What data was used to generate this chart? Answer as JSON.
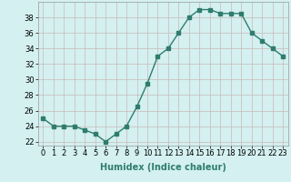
{
  "x": [
    0,
    1,
    2,
    3,
    4,
    5,
    6,
    7,
    8,
    9,
    10,
    11,
    12,
    13,
    14,
    15,
    16,
    17,
    18,
    19,
    20,
    21,
    22,
    23
  ],
  "y": [
    25,
    24,
    24,
    24,
    23.5,
    23,
    22,
    23,
    24,
    26.5,
    29.5,
    33,
    34,
    36,
    38,
    39,
    39,
    38.5,
    38.5,
    38.5,
    36,
    35,
    34,
    33
  ],
  "xlabel": "Humidex (Indice chaleur)",
  "ylim": [
    21.5,
    40
  ],
  "yticks": [
    22,
    24,
    26,
    28,
    30,
    32,
    34,
    36,
    38
  ],
  "xticks": [
    0,
    1,
    2,
    3,
    4,
    5,
    6,
    7,
    8,
    9,
    10,
    11,
    12,
    13,
    14,
    15,
    16,
    17,
    18,
    19,
    20,
    21,
    22,
    23
  ],
  "line_color": "#2e7d6e",
  "bg_color": "#d4f0f0",
  "grid_color": "#c9b8b8",
  "fig_bg": "#d4f0f0",
  "marker": "s",
  "markersize": 2.5,
  "linewidth": 1.0,
  "tick_fontsize": 6,
  "xlabel_fontsize": 7
}
